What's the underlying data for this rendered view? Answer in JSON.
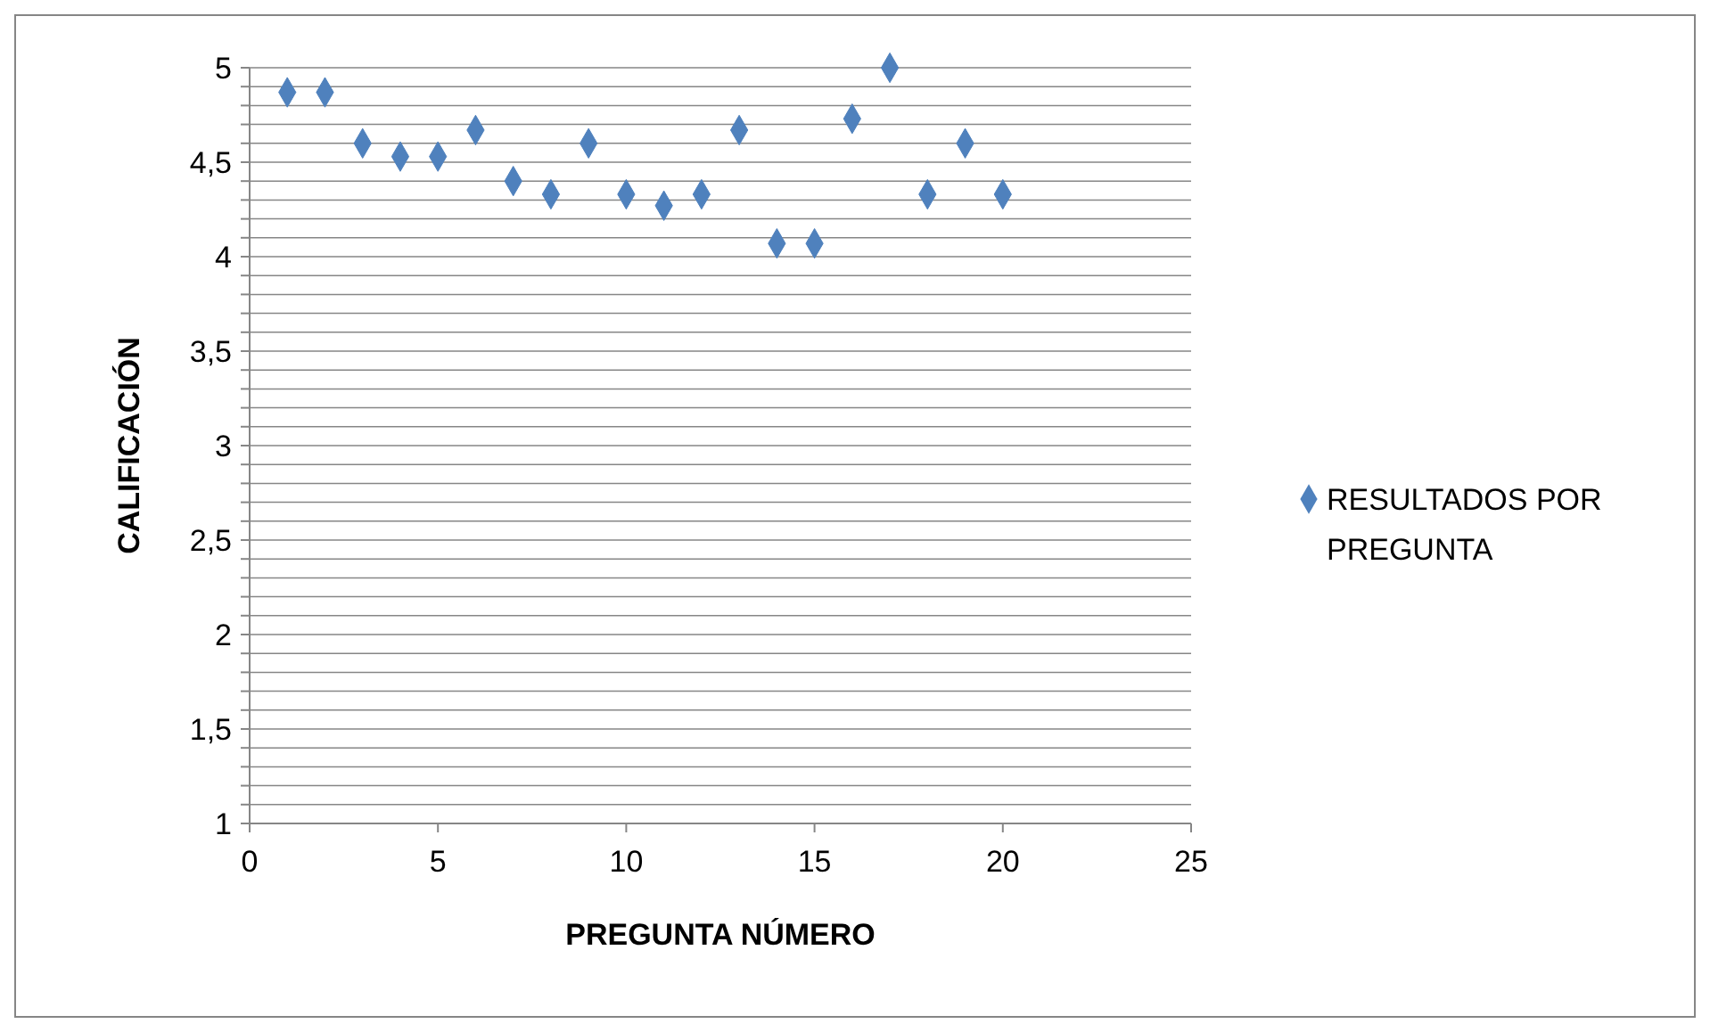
{
  "chart_data": {
    "type": "scatter",
    "xlabel": "PREGUNTA NÚMERO",
    "ylabel": "CALIFICACIÓN",
    "x": [
      1,
      2,
      3,
      4,
      5,
      6,
      7,
      8,
      9,
      10,
      11,
      12,
      13,
      14,
      15,
      16,
      17,
      18,
      19,
      20
    ],
    "series": [
      {
        "name": "RESULTADOS POR PREGUNTA",
        "color": "#4f81bd",
        "values": [
          4.87,
          4.87,
          4.6,
          4.53,
          4.53,
          4.67,
          4.4,
          4.33,
          4.6,
          4.33,
          4.27,
          4.33,
          4.67,
          4.07,
          4.07,
          4.73,
          5,
          4.33,
          4.6,
          4.33
        ]
      }
    ],
    "xlim": [
      0,
      25
    ],
    "xticks": [
      0,
      5,
      10,
      15,
      20,
      25
    ],
    "ylim": [
      1,
      5
    ],
    "yticks": [
      {
        "value": 1,
        "label": "1"
      },
      {
        "value": 1.1,
        "label": null
      },
      {
        "value": 1.2,
        "label": null
      },
      {
        "value": 1.3,
        "label": null
      },
      {
        "value": 1.4,
        "label": null
      },
      {
        "value": 1.5,
        "label": "1,5"
      },
      {
        "value": 1.6,
        "label": null
      },
      {
        "value": 1.7,
        "label": null
      },
      {
        "value": 1.8,
        "label": null
      },
      {
        "value": 1.9,
        "label": null
      },
      {
        "value": 2,
        "label": "2"
      },
      {
        "value": 2.1,
        "label": null
      },
      {
        "value": 2.2,
        "label": null
      },
      {
        "value": 2.3,
        "label": null
      },
      {
        "value": 2.4,
        "label": null
      },
      {
        "value": 2.5,
        "label": "2,5"
      },
      {
        "value": 2.6,
        "label": null
      },
      {
        "value": 2.7,
        "label": null
      },
      {
        "value": 2.8,
        "label": null
      },
      {
        "value": 2.9,
        "label": null
      },
      {
        "value": 3,
        "label": "3"
      },
      {
        "value": 3.1,
        "label": null
      },
      {
        "value": 3.2,
        "label": null
      },
      {
        "value": 3.3,
        "label": null
      },
      {
        "value": 3.4,
        "label": null
      },
      {
        "value": 3.5,
        "label": "3,5"
      },
      {
        "value": 3.6,
        "label": null
      },
      {
        "value": 3.7,
        "label": null
      },
      {
        "value": 3.8,
        "label": null
      },
      {
        "value": 3.9,
        "label": null
      },
      {
        "value": 4,
        "label": "4"
      },
      {
        "value": 4.1,
        "label": null
      },
      {
        "value": 4.2,
        "label": null
      },
      {
        "value": 4.3,
        "label": null
      },
      {
        "value": 4.4,
        "label": null
      },
      {
        "value": 4.5,
        "label": "4,5"
      },
      {
        "value": 4.6,
        "label": null
      },
      {
        "value": 4.7,
        "label": null
      },
      {
        "value": 4.8,
        "label": null
      },
      {
        "value": 4.9,
        "label": null
      },
      {
        "value": 5,
        "label": "5"
      }
    ],
    "grid": "y",
    "legend": "right",
    "marker": "diamond"
  }
}
